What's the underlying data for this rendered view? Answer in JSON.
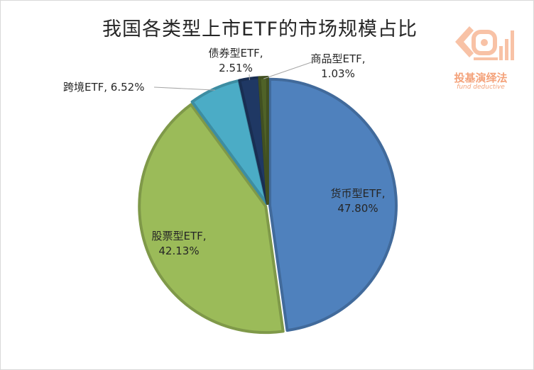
{
  "chart_data": {
    "type": "pie",
    "title": "我国各类型上市ETF的市场规模占比",
    "slices": [
      {
        "label": "货币型ETF",
        "value": 47.8,
        "value_text": "47.80%",
        "color": "#4f81bd"
      },
      {
        "label": "股票型ETF",
        "value": 42.13,
        "value_text": "42.13%",
        "color": "#9bbb59"
      },
      {
        "label": "跨境ETF",
        "value": 6.52,
        "value_text": "6.52%",
        "color": "#4bacc6"
      },
      {
        "label": "债券型ETF",
        "value": 2.51,
        "value_text": "2.51%",
        "color": "#1f3864"
      },
      {
        "label": "商品型ETF",
        "value": 1.03,
        "value_text": "1.03%",
        "color": "#4f6228"
      }
    ],
    "legend": "none"
  },
  "labels": {
    "money": {
      "name": "货币型ETF,",
      "pct": "47.80%"
    },
    "stock": {
      "name": "股票型ETF,",
      "pct": "42.13%"
    },
    "cross": {
      "text": "跨境ETF, 6.52%"
    },
    "bond": {
      "name": "债券型ETF,",
      "pct": "2.51%"
    },
    "commodity": {
      "name": "商品型ETF,",
      "pct": "1.03%"
    }
  },
  "watermark": {
    "text": "投基演绎法",
    "sub": "fund deductive"
  }
}
